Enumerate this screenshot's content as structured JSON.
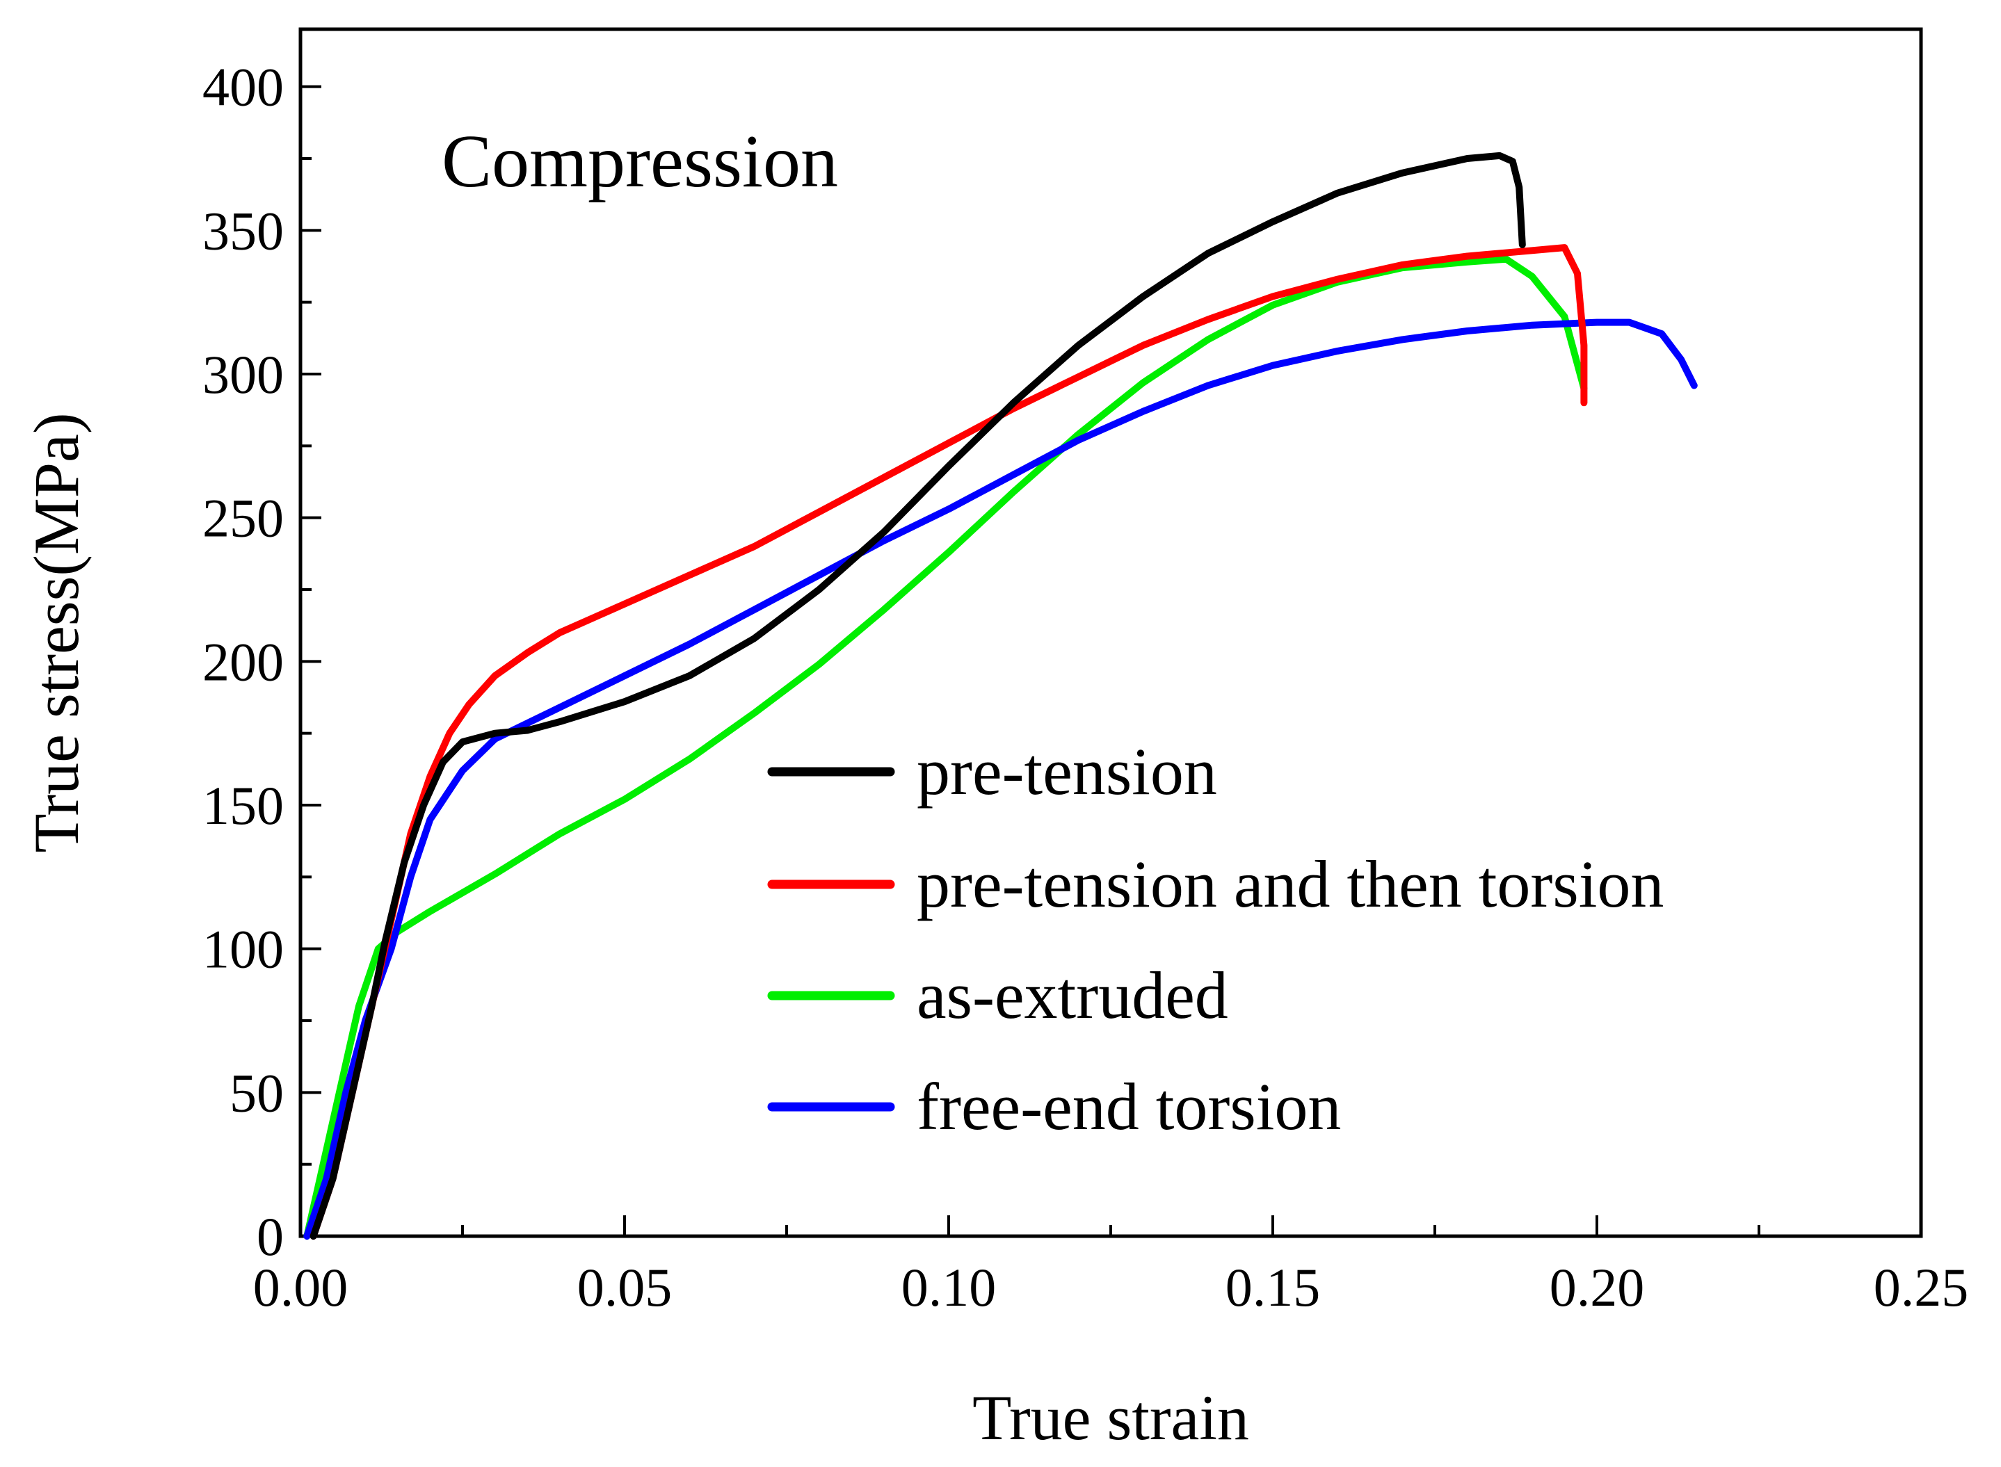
{
  "chart_data": {
    "type": "line",
    "annotation": "Compression",
    "xlabel": "True strain",
    "ylabel": "True stress(MPa)",
    "xlim": [
      0,
      0.25
    ],
    "ylim": [
      0,
      420
    ],
    "x_ticks": [
      0,
      0.05,
      0.1,
      0.15,
      0.2,
      0.25
    ],
    "x_tick_labels": [
      "0.00",
      "0.05",
      "0.10",
      "0.15",
      "0.20",
      "0.25"
    ],
    "y_ticks": [
      0,
      50,
      100,
      150,
      200,
      250,
      300,
      350,
      400
    ],
    "y_tick_labels": [
      "0",
      "50",
      "100",
      "150",
      "200",
      "250",
      "300",
      "350",
      "400"
    ],
    "grid": false,
    "legend_position": "center-right",
    "series": [
      {
        "name": "pre-tension",
        "color": "#000000",
        "points": [
          [
            0.002,
            0
          ],
          [
            0.005,
            20
          ],
          [
            0.008,
            50
          ],
          [
            0.011,
            80
          ],
          [
            0.013,
            102
          ],
          [
            0.016,
            130
          ],
          [
            0.019,
            150
          ],
          [
            0.022,
            165
          ],
          [
            0.025,
            172
          ],
          [
            0.03,
            175
          ],
          [
            0.035,
            176
          ],
          [
            0.04,
            179
          ],
          [
            0.05,
            186
          ],
          [
            0.06,
            195
          ],
          [
            0.07,
            208
          ],
          [
            0.08,
            225
          ],
          [
            0.09,
            245
          ],
          [
            0.1,
            268
          ],
          [
            0.11,
            290
          ],
          [
            0.12,
            310
          ],
          [
            0.13,
            327
          ],
          [
            0.14,
            342
          ],
          [
            0.15,
            353
          ],
          [
            0.16,
            363
          ],
          [
            0.17,
            370
          ],
          [
            0.18,
            375
          ],
          [
            0.185,
            376
          ],
          [
            0.187,
            374
          ],
          [
            0.188,
            365
          ],
          [
            0.1885,
            345
          ]
        ]
      },
      {
        "name": "pre-tension and then torsion",
        "color": "#ff0000",
        "points": [
          [
            0.002,
            0
          ],
          [
            0.005,
            20
          ],
          [
            0.008,
            50
          ],
          [
            0.011,
            80
          ],
          [
            0.014,
            110
          ],
          [
            0.017,
            140
          ],
          [
            0.02,
            160
          ],
          [
            0.023,
            175
          ],
          [
            0.026,
            185
          ],
          [
            0.03,
            195
          ],
          [
            0.035,
            203
          ],
          [
            0.04,
            210
          ],
          [
            0.05,
            220
          ],
          [
            0.06,
            230
          ],
          [
            0.07,
            240
          ],
          [
            0.08,
            252
          ],
          [
            0.09,
            264
          ],
          [
            0.1,
            276
          ],
          [
            0.11,
            288
          ],
          [
            0.12,
            299
          ],
          [
            0.13,
            310
          ],
          [
            0.14,
            319
          ],
          [
            0.15,
            327
          ],
          [
            0.16,
            333
          ],
          [
            0.17,
            338
          ],
          [
            0.18,
            341
          ],
          [
            0.19,
            343
          ],
          [
            0.195,
            344
          ],
          [
            0.197,
            335
          ],
          [
            0.198,
            310
          ],
          [
            0.198,
            290
          ]
        ]
      },
      {
        "name": "as-extruded",
        "color": "#00ee00",
        "points": [
          [
            0.001,
            0
          ],
          [
            0.003,
            20
          ],
          [
            0.006,
            50
          ],
          [
            0.009,
            80
          ],
          [
            0.012,
            100
          ],
          [
            0.015,
            106
          ],
          [
            0.02,
            113
          ],
          [
            0.03,
            126
          ],
          [
            0.04,
            140
          ],
          [
            0.05,
            152
          ],
          [
            0.06,
            166
          ],
          [
            0.07,
            182
          ],
          [
            0.08,
            199
          ],
          [
            0.09,
            218
          ],
          [
            0.1,
            238
          ],
          [
            0.11,
            259
          ],
          [
            0.12,
            279
          ],
          [
            0.13,
            297
          ],
          [
            0.14,
            312
          ],
          [
            0.15,
            324
          ],
          [
            0.16,
            332
          ],
          [
            0.17,
            337
          ],
          [
            0.18,
            339
          ],
          [
            0.186,
            340
          ],
          [
            0.19,
            334
          ],
          [
            0.195,
            320
          ],
          [
            0.198,
            295
          ]
        ]
      },
      {
        "name": "free-end torsion",
        "color": "#0000ff",
        "points": [
          [
            0.001,
            0
          ],
          [
            0.004,
            20
          ],
          [
            0.007,
            50
          ],
          [
            0.01,
            75
          ],
          [
            0.014,
            100
          ],
          [
            0.017,
            125
          ],
          [
            0.02,
            145
          ],
          [
            0.025,
            162
          ],
          [
            0.03,
            173
          ],
          [
            0.04,
            184
          ],
          [
            0.05,
            195
          ],
          [
            0.06,
            206
          ],
          [
            0.07,
            218
          ],
          [
            0.08,
            230
          ],
          [
            0.09,
            242
          ],
          [
            0.1,
            253
          ],
          [
            0.11,
            265
          ],
          [
            0.12,
            277
          ],
          [
            0.13,
            287
          ],
          [
            0.14,
            296
          ],
          [
            0.15,
            303
          ],
          [
            0.16,
            308
          ],
          [
            0.17,
            312
          ],
          [
            0.18,
            315
          ],
          [
            0.19,
            317
          ],
          [
            0.2,
            318
          ],
          [
            0.205,
            318
          ],
          [
            0.21,
            314
          ],
          [
            0.213,
            305
          ],
          [
            0.215,
            296
          ]
        ]
      }
    ]
  }
}
